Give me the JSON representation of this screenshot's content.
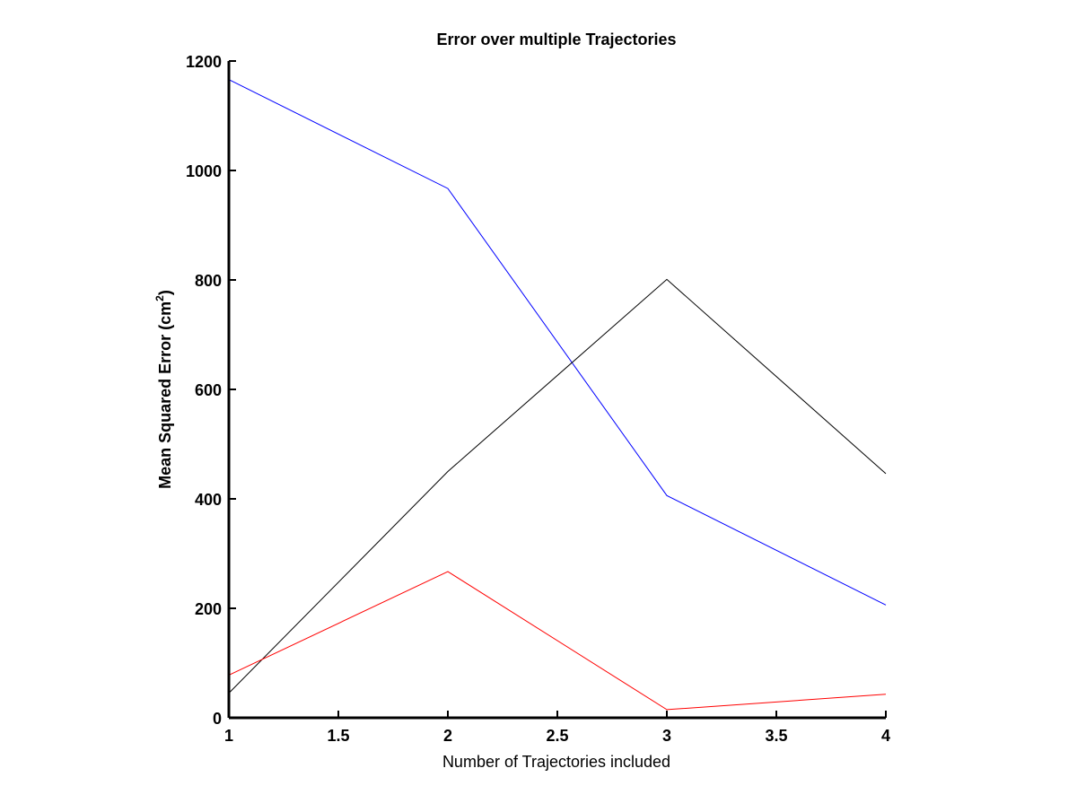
{
  "chart_data": {
    "type": "line",
    "title": "Error over multiple Trajectories",
    "xlabel": "Number of Trajectories included",
    "ylabel": {
      "main": "Mean Squared Error (cm",
      "superscript": "2",
      "tail": ")"
    },
    "xlim": [
      1,
      4
    ],
    "ylim": [
      0,
      1200
    ],
    "xticks": [
      "1",
      "1.5",
      "2",
      "2.5",
      "3",
      "3.5",
      "4"
    ],
    "yticks": [
      "0",
      "200",
      "400",
      "600",
      "800",
      "1000",
      "1200"
    ],
    "grid": false,
    "x": [
      1,
      2,
      3,
      4
    ],
    "series": [
      {
        "color": "#0000ff",
        "values": [
          1166,
          967,
          406,
          206
        ]
      },
      {
        "color": "#000000",
        "values": [
          45,
          450,
          801,
          446
        ]
      },
      {
        "color": "#ff0000",
        "values": [
          78,
          267,
          15,
          43
        ]
      }
    ]
  }
}
